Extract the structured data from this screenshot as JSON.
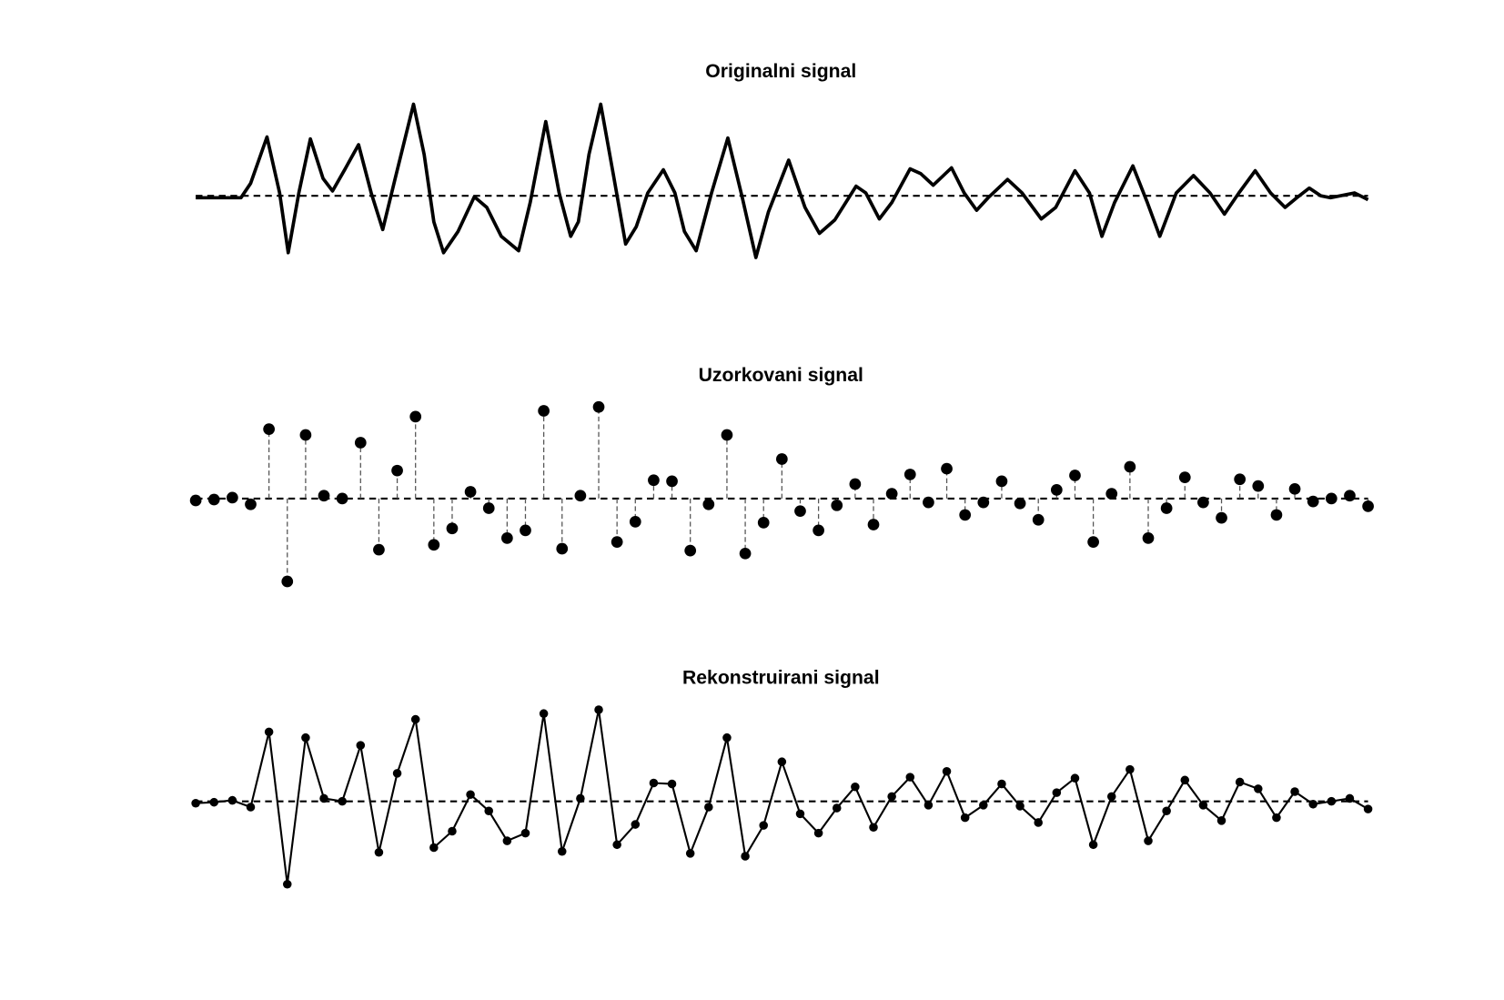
{
  "chart_data": [
    {
      "type": "line",
      "title": "Originalni signal",
      "color": "#000000",
      "markers": false,
      "xlim": [
        0,
        64
      ],
      "ylim": [
        -1.1,
        1.1
      ],
      "x": [
        0,
        2.47,
        3.0,
        3.89,
        4.58,
        5.05,
        5.63,
        6.26,
        6.95,
        7.47,
        8.16,
        8.89,
        9.58,
        10.21,
        10.89,
        11.89,
        12.47,
        13.0,
        13.53,
        14.32,
        15.21,
        15.89,
        16.68,
        17.63,
        18.26,
        19.11,
        19.84,
        20.47,
        20.89,
        21.47,
        22.11,
        22.79,
        23.47,
        24.05,
        24.68,
        25.53,
        26.16,
        26.68,
        27.32,
        28.16,
        29.05,
        29.84,
        30.58,
        31.26,
        32.37,
        33.26,
        34.05,
        34.89,
        36.05,
        36.58,
        37.32,
        38.0,
        39.0,
        39.58,
        40.26,
        41.26,
        41.95,
        42.63,
        43.26,
        44.32,
        45.11,
        46.16,
        46.95,
        48.0,
        48.79,
        49.47,
        50.16,
        51.16,
        51.95,
        52.63,
        53.53,
        54.47,
        55.37,
        56.16,
        56.95,
        57.84,
        58.68,
        59.47,
        60.11,
        60.79,
        61.42,
        61.95,
        63.26,
        64
      ],
      "values": [
        -0.02,
        -0.02,
        0.13,
        0.61,
        0.03,
        -0.59,
        0.03,
        0.59,
        0.18,
        0.05,
        0.28,
        0.53,
        0.03,
        -0.35,
        0.18,
        0.95,
        0.43,
        -0.27,
        -0.59,
        -0.37,
        -0.01,
        -0.12,
        -0.42,
        -0.57,
        -0.07,
        0.77,
        0.03,
        -0.42,
        -0.27,
        0.43,
        0.95,
        0.23,
        -0.5,
        -0.32,
        0.03,
        0.27,
        0.03,
        -0.37,
        -0.57,
        0.03,
        0.6,
        -0.02,
        -0.64,
        -0.17,
        0.37,
        -0.12,
        -0.39,
        -0.25,
        0.1,
        0.03,
        -0.24,
        -0.07,
        0.28,
        0.23,
        0.11,
        0.29,
        0.03,
        -0.15,
        -0.02,
        0.17,
        0.03,
        -0.24,
        -0.12,
        0.26,
        0.03,
        -0.42,
        -0.07,
        0.31,
        -0.07,
        -0.42,
        0.03,
        0.21,
        0.03,
        -0.19,
        0.03,
        0.26,
        0.03,
        -0.12,
        -0.02,
        0.08,
        0,
        -0.02,
        0.03,
        -0.04
      ]
    },
    {
      "type": "stem",
      "title": "Uzorkovani signal",
      "color": "#000000",
      "xlim": [
        0,
        64
      ],
      "ylim": [
        -1.1,
        1.1
      ],
      "x": [
        0,
        1,
        2,
        3,
        4,
        5,
        6,
        7,
        8,
        9,
        10,
        11,
        12,
        13,
        14,
        15,
        16,
        17,
        18,
        19,
        20,
        21,
        22,
        23,
        24,
        25,
        26,
        27,
        28,
        29,
        30,
        31,
        32,
        33,
        34,
        35,
        36,
        37,
        38,
        39,
        40,
        41,
        42,
        43,
        44,
        45,
        46,
        47,
        48,
        49,
        50,
        51,
        52,
        53,
        54,
        55,
        56,
        57,
        58,
        59,
        60,
        61,
        62,
        63,
        64
      ],
      "values": [
        -0.02,
        -0.01,
        0.01,
        -0.06,
        0.72,
        -0.86,
        0.66,
        0.03,
        0,
        0.58,
        -0.53,
        0.29,
        0.85,
        -0.48,
        -0.31,
        0.07,
        -0.1,
        -0.41,
        -0.33,
        0.91,
        -0.52,
        0.03,
        0.95,
        -0.45,
        -0.24,
        0.19,
        0.18,
        -0.54,
        -0.06,
        0.66,
        -0.57,
        -0.25,
        0.41,
        -0.13,
        -0.33,
        -0.07,
        0.15,
        -0.27,
        0.05,
        0.25,
        -0.04,
        0.31,
        -0.17,
        -0.04,
        0.18,
        -0.05,
        -0.22,
        0.09,
        0.24,
        -0.45,
        0.05,
        0.33,
        -0.41,
        -0.1,
        0.22,
        -0.04,
        -0.2,
        0.2,
        0.13,
        -0.17,
        0.1,
        -0.03,
        0,
        0.03,
        -0.08
      ]
    },
    {
      "type": "line",
      "title": "Rekonstruirani signal",
      "color": "#000000",
      "markers": true,
      "xlim": [
        0,
        64
      ],
      "ylim": [
        -1.1,
        1.1
      ],
      "x": [
        0,
        1,
        2,
        3,
        4,
        5,
        6,
        7,
        8,
        9,
        10,
        11,
        12,
        13,
        14,
        15,
        16,
        17,
        18,
        19,
        20,
        21,
        22,
        23,
        24,
        25,
        26,
        27,
        28,
        29,
        30,
        31,
        32,
        33,
        34,
        35,
        36,
        37,
        38,
        39,
        40,
        41,
        42,
        43,
        44,
        45,
        46,
        47,
        48,
        49,
        50,
        51,
        52,
        53,
        54,
        55,
        56,
        57,
        58,
        59,
        60,
        61,
        62,
        63,
        64
      ],
      "values": [
        -0.02,
        -0.01,
        0.01,
        -0.06,
        0.72,
        -0.86,
        0.66,
        0.03,
        0,
        0.58,
        -0.53,
        0.29,
        0.85,
        -0.48,
        -0.31,
        0.07,
        -0.1,
        -0.41,
        -0.33,
        0.91,
        -0.52,
        0.03,
        0.95,
        -0.45,
        -0.24,
        0.19,
        0.18,
        -0.54,
        -0.06,
        0.66,
        -0.57,
        -0.25,
        0.41,
        -0.13,
        -0.33,
        -0.07,
        0.15,
        -0.27,
        0.05,
        0.25,
        -0.04,
        0.31,
        -0.17,
        -0.04,
        0.18,
        -0.05,
        -0.22,
        0.09,
        0.24,
        -0.45,
        0.05,
        0.33,
        -0.41,
        -0.1,
        0.22,
        -0.04,
        -0.2,
        0.2,
        0.13,
        -0.17,
        0.1,
        -0.03,
        0,
        0.03,
        -0.08
      ]
    }
  ]
}
